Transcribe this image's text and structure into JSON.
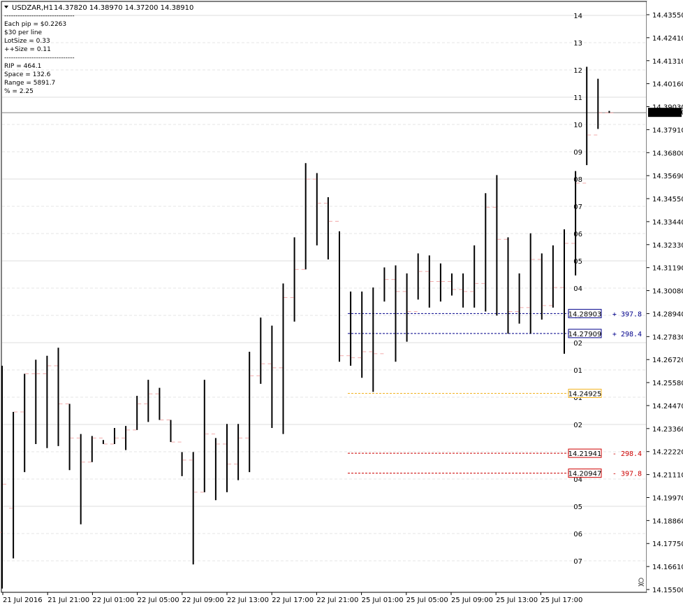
{
  "header": {
    "symbol": "USDZAR,H1",
    "ohlc": "14.37820 14.38970 14.37200 14.38910"
  },
  "info_lines": [
    "-------------------------------",
    "Each pip = $0.2263",
    "$30 per line",
    "LotSize = 0.33",
    "++Size = 0.11",
    "-------------------------------",
    "RIP = 464.1",
    "Space = 132.6",
    "Range = 5891.7",
    "% = 2.25"
  ],
  "colors": {
    "candle": "#000000",
    "open_tick": "#f2aaaa",
    "grid": "#dcdcdc",
    "grid_dash": "#e6e6e6",
    "blue": "#00008b",
    "orange": "#f2b320",
    "red": "#cc0000",
    "price_line": "#7f7f7f"
  },
  "chart_data": {
    "type": "ohlc_bar",
    "symbol": "USDZAR",
    "timeframe": "H1",
    "ylim": [
      14.1515,
      14.4376
    ],
    "y_ticks": [
      "14.43550",
      "14.42410",
      "14.41310",
      "14.40160",
      "14.39030",
      "14.37910",
      "14.36800",
      "14.35690",
      "14.34550",
      "14.33440",
      "14.32330",
      "14.31190",
      "14.30080",
      "14.28940",
      "14.27830",
      "14.26720",
      "14.25580",
      "14.24470",
      "14.23360",
      "14.22220",
      "14.21110",
      "14.19970",
      "14.18860",
      "14.17750",
      "14.16610",
      "14.15500"
    ],
    "x_labels": [
      "21 Jul 2016",
      "21 Jul 21:00",
      "22 Jul 01:00",
      "22 Jul 05:00",
      "22 Jul 09:00",
      "22 Jul 13:00",
      "22 Jul 17:00",
      "22 Jul 21:00",
      "25 Jul 01:00",
      "25 Jul 05:00",
      "25 Jul 09:00",
      "25 Jul 13:00",
      "25 Jul 17:00"
    ],
    "current_price": "14.38910",
    "grid_labels": [
      "14",
      "13",
      "12",
      "11",
      "10",
      "09",
      "08",
      "07",
      "06",
      "05",
      "04",
      "03",
      "02",
      "01",
      "01",
      "02",
      "03",
      "04",
      "05",
      "06",
      "07"
    ],
    "level_lines": [
      {
        "price": "14.28903",
        "tag": "+ 397.8",
        "color": "blue"
      },
      {
        "price": "14.27909",
        "tag": "+ 298.4",
        "color": "blue"
      },
      {
        "price": "14.24925",
        "tag": "",
        "color": "orange"
      },
      {
        "price": "14.21941",
        "tag": "- 298.4",
        "color": "red"
      },
      {
        "price": "14.20947",
        "tag": "- 397.8",
        "color": "red"
      }
    ],
    "bars": [
      [
        14.18,
        14.263,
        14.152,
        14.204
      ],
      [
        14.192,
        14.24,
        14.167,
        14.24
      ],
      [
        14.24,
        14.259,
        14.21,
        14.259
      ],
      [
        14.259,
        14.266,
        14.224,
        14.259
      ],
      [
        14.259,
        14.268,
        14.222,
        14.263
      ],
      [
        14.263,
        14.272,
        14.223,
        14.244
      ],
      [
        14.244,
        14.244,
        14.211,
        14.227
      ],
      [
        14.227,
        14.229,
        14.184,
        14.215
      ],
      [
        14.215,
        14.228,
        14.215,
        14.227
      ],
      [
        14.227,
        14.226,
        14.224,
        14.224
      ],
      [
        14.224,
        14.232,
        14.224,
        14.227
      ],
      [
        14.227,
        14.233,
        14.221,
        14.231
      ],
      [
        14.231,
        14.248,
        14.231,
        14.244
      ],
      [
        14.244,
        14.256,
        14.235,
        14.249
      ],
      [
        14.249,
        14.252,
        14.236,
        14.236
      ],
      [
        14.236,
        14.236,
        14.225,
        14.225
      ],
      [
        14.225,
        14.22,
        14.208,
        14.216
      ],
      [
        14.216,
        14.22,
        14.164,
        14.2
      ],
      [
        14.2,
        14.256,
        14.2,
        14.229
      ],
      [
        14.229,
        14.227,
        14.196,
        14.224
      ],
      [
        14.224,
        14.234,
        14.2,
        14.214
      ],
      [
        14.214,
        14.234,
        14.206,
        14.227
      ],
      [
        14.227,
        14.27,
        14.21,
        14.258
      ],
      [
        14.258,
        14.287,
        14.254,
        14.264
      ],
      [
        14.264,
        14.283,
        14.232,
        14.262
      ],
      [
        14.262,
        14.304,
        14.229,
        14.297
      ],
      [
        14.297,
        14.327,
        14.285,
        14.311
      ],
      [
        14.311,
        14.364,
        14.311,
        14.356
      ],
      [
        14.356,
        14.359,
        14.323,
        14.344
      ],
      [
        14.344,
        14.347,
        14.316,
        14.335
      ],
      [
        14.335,
        14.33,
        14.265,
        14.268
      ],
      [
        14.268,
        14.3,
        14.263,
        14.267
      ],
      [
        14.267,
        14.3,
        14.257,
        14.27
      ],
      [
        14.27,
        14.302,
        14.25,
        14.269
      ],
      [
        14.269,
        14.312,
        14.295,
        14.306
      ],
      [
        14.306,
        14.313,
        14.265,
        14.3
      ],
      [
        14.3,
        14.309,
        14.275,
        14.29
      ],
      [
        14.29,
        14.319,
        14.296,
        14.31
      ],
      [
        14.31,
        14.318,
        14.292,
        14.305
      ],
      [
        14.305,
        14.314,
        14.295,
        14.305
      ],
      [
        14.305,
        14.309,
        14.298,
        14.301
      ],
      [
        14.301,
        14.309,
        14.292,
        14.3
      ],
      [
        14.3,
        14.323,
        14.292,
        14.304
      ],
      [
        14.304,
        14.349,
        14.29,
        14.342
      ],
      [
        14.342,
        14.358,
        14.288,
        14.326
      ],
      [
        14.326,
        14.327,
        14.279,
        14.29
      ],
      [
        14.29,
        14.309,
        14.284,
        14.292
      ],
      [
        14.292,
        14.329,
        14.279,
        14.316
      ],
      [
        14.316,
        14.319,
        14.286,
        14.293
      ],
      [
        14.293,
        14.323,
        14.292,
        14.302
      ],
      [
        14.302,
        14.331,
        14.269,
        14.324
      ],
      [
        14.324,
        14.36,
        14.308,
        14.354
      ],
      [
        14.354,
        14.412,
        14.363,
        14.378
      ],
      [
        14.378,
        14.406,
        14.381,
        14.389
      ],
      [
        14.389,
        14.389,
        14.39,
        14.389
      ]
    ]
  }
}
